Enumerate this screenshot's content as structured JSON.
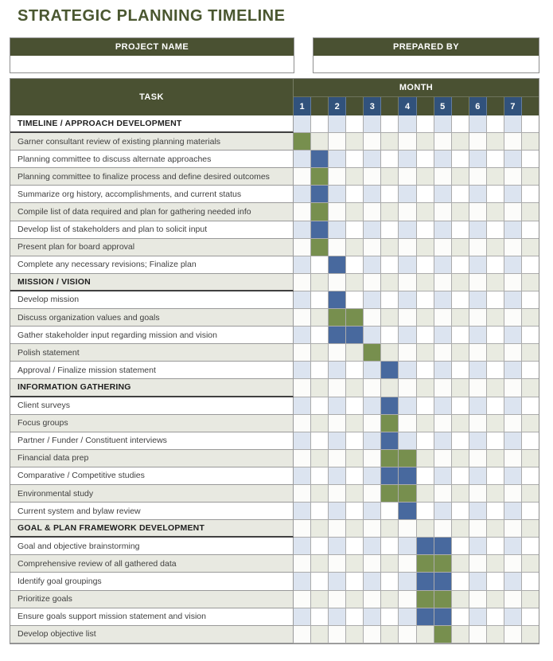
{
  "title": "STRATEGIC PLANNING TIMELINE",
  "project_box": {
    "label": "PROJECT NAME",
    "value": ""
  },
  "prepared_box": {
    "label": "PREPARED BY",
    "value": ""
  },
  "table": {
    "task_header": "TASK",
    "month_header": "MONTH",
    "months": [
      "1",
      "2",
      "3",
      "4",
      "5",
      "6",
      "7"
    ],
    "columns_per_month": 2
  },
  "colors": {
    "header_olive": "#4a5132",
    "title_green": "#4a5730",
    "month_number_navy": "#31527c",
    "fill_blue": "#48699e",
    "fill_green": "#778f4e",
    "cell_light_blue": "#dce4f0",
    "cell_light_gray": "#e9ebe1",
    "row_stripe_gray": "#e8e9e1"
  },
  "chart_data": {
    "type": "gantt",
    "title": "STRATEGIC PLANNING TIMELINE",
    "x_axis": "Month 1 through Month 7, two half-month columns per month (14 columns, index 0-13)",
    "fill_colors": {
      "green": "#778f4e",
      "blue": "#48699e"
    },
    "rows": [
      {
        "type": "section",
        "label": "TIMELINE / APPROACH DEVELOPMENT",
        "fills": []
      },
      {
        "type": "task",
        "label": "Garner consultant review of existing planning materials",
        "fills": [
          {
            "col": 0,
            "color": "green"
          }
        ]
      },
      {
        "type": "task",
        "label": "Planning committee to discuss alternate approaches",
        "fills": [
          {
            "col": 1,
            "color": "blue"
          }
        ]
      },
      {
        "type": "task",
        "label": "Planning committee to finalize process and define desired outcomes",
        "fills": [
          {
            "col": 1,
            "color": "green"
          }
        ]
      },
      {
        "type": "task",
        "label": "Summarize org history, accomplishments, and current status",
        "fills": [
          {
            "col": 1,
            "color": "blue"
          }
        ]
      },
      {
        "type": "task",
        "label": "Compile list of data required and plan for gathering needed info",
        "fills": [
          {
            "col": 1,
            "color": "green"
          }
        ]
      },
      {
        "type": "task",
        "label": "Develop list of stakeholders and plan to solicit input",
        "fills": [
          {
            "col": 1,
            "color": "blue"
          }
        ]
      },
      {
        "type": "task",
        "label": "Present plan for board approval",
        "fills": [
          {
            "col": 1,
            "color": "green"
          }
        ]
      },
      {
        "type": "task",
        "label": "Complete any necessary revisions; Finalize plan",
        "fills": [
          {
            "col": 2,
            "color": "blue"
          }
        ]
      },
      {
        "type": "section",
        "label": "MISSION / VISION",
        "fills": []
      },
      {
        "type": "task",
        "label": "Develop mission",
        "fills": [
          {
            "col": 2,
            "color": "blue"
          }
        ]
      },
      {
        "type": "task",
        "label": "Discuss organization values and goals",
        "fills": [
          {
            "col": 2,
            "color": "green"
          },
          {
            "col": 3,
            "color": "green"
          }
        ]
      },
      {
        "type": "task",
        "label": "Gather stakeholder input regarding mission and vision",
        "fills": [
          {
            "col": 2,
            "color": "blue"
          },
          {
            "col": 3,
            "color": "blue"
          }
        ]
      },
      {
        "type": "task",
        "label": "Polish statement",
        "fills": [
          {
            "col": 4,
            "color": "green"
          }
        ]
      },
      {
        "type": "task",
        "label": "Approval / Finalize mission statement",
        "fills": [
          {
            "col": 5,
            "color": "blue"
          }
        ]
      },
      {
        "type": "section",
        "label": "INFORMATION GATHERING",
        "fills": []
      },
      {
        "type": "task",
        "label": "Client surveys",
        "fills": [
          {
            "col": 5,
            "color": "blue"
          }
        ]
      },
      {
        "type": "task",
        "label": "Focus groups",
        "fills": [
          {
            "col": 5,
            "color": "green"
          }
        ]
      },
      {
        "type": "task",
        "label": "Partner / Funder / Constituent interviews",
        "fills": [
          {
            "col": 5,
            "color": "blue"
          }
        ]
      },
      {
        "type": "task",
        "label": "Financial data prep",
        "fills": [
          {
            "col": 5,
            "color": "green"
          },
          {
            "col": 6,
            "color": "green"
          }
        ]
      },
      {
        "type": "task",
        "label": "Comparative / Competitive studies",
        "fills": [
          {
            "col": 5,
            "color": "blue"
          },
          {
            "col": 6,
            "color": "blue"
          }
        ]
      },
      {
        "type": "task",
        "label": "Environmental study",
        "fills": [
          {
            "col": 5,
            "color": "green"
          },
          {
            "col": 6,
            "color": "green"
          }
        ]
      },
      {
        "type": "task",
        "label": "Current system and bylaw review",
        "fills": [
          {
            "col": 6,
            "color": "blue"
          }
        ]
      },
      {
        "type": "section",
        "label": "GOAL & PLAN FRAMEWORK DEVELOPMENT",
        "fills": []
      },
      {
        "type": "task",
        "label": "Goal and objective brainstorming",
        "fills": [
          {
            "col": 7,
            "color": "blue"
          },
          {
            "col": 8,
            "color": "blue"
          }
        ]
      },
      {
        "type": "task",
        "label": "Comprehensive review of all gathered data",
        "fills": [
          {
            "col": 7,
            "color": "green"
          },
          {
            "col": 8,
            "color": "green"
          }
        ]
      },
      {
        "type": "task",
        "label": "Identify goal groupings",
        "fills": [
          {
            "col": 7,
            "color": "blue"
          },
          {
            "col": 8,
            "color": "blue"
          }
        ]
      },
      {
        "type": "task",
        "label": "Prioritize goals",
        "fills": [
          {
            "col": 7,
            "color": "green"
          },
          {
            "col": 8,
            "color": "green"
          }
        ]
      },
      {
        "type": "task",
        "label": "Ensure goals support mission statement and vision",
        "fills": [
          {
            "col": 7,
            "color": "blue"
          },
          {
            "col": 8,
            "color": "blue"
          }
        ]
      },
      {
        "type": "task",
        "label": "Develop objective list",
        "fills": [
          {
            "col": 8,
            "color": "green"
          }
        ]
      }
    ]
  }
}
